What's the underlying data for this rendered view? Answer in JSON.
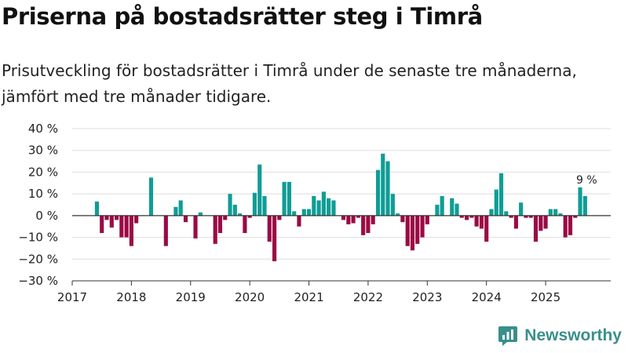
{
  "header": {
    "title": "Priserna på bostadsrätter steg i Timrå",
    "subtitle": "Prisutveckling för bostadsrätter i Timrå under de senaste tre månaderna, jämfört med tre månader tidigare."
  },
  "brand": {
    "name": "Newsworthy"
  },
  "colors": {
    "positive": "#0f9d96",
    "negative": "#9b0a45",
    "zero_line": "#333333",
    "grid": "#dddddd",
    "brand": "#3a8f8b"
  },
  "chart_data": {
    "type": "bar",
    "title": "Priserna på bostadsrätter steg i Timrå",
    "xlabel": "",
    "ylabel": "",
    "ylim": [
      -30,
      40
    ],
    "yticks": [
      -30,
      -20,
      -10,
      0,
      10,
      20,
      30,
      40
    ],
    "ytick_labels": [
      "−30 %",
      "−20 %",
      "−10 %",
      "0 %",
      "10 %",
      "20 %",
      "30 %",
      "40 %"
    ],
    "xlim": [
      2017,
      2026.1
    ],
    "xticks": [
      2017,
      2018,
      2019,
      2020,
      2021,
      2022,
      2023,
      2024,
      2025
    ],
    "xtick_labels": [
      "2017",
      "2018",
      "2019",
      "2020",
      "2021",
      "2022",
      "2023",
      "2024",
      "2025"
    ],
    "annotation": {
      "text": "9 %",
      "x": 2025.667,
      "y": 13
    },
    "series": [
      {
        "name": "Prisutveckling",
        "points": [
          {
            "x": 2017.417,
            "y": 6.5
          },
          {
            "x": 2017.5,
            "y": -8
          },
          {
            "x": 2017.583,
            "y": -2
          },
          {
            "x": 2017.667,
            "y": -5.5
          },
          {
            "x": 2017.75,
            "y": -2
          },
          {
            "x": 2017.833,
            "y": -10
          },
          {
            "x": 2017.917,
            "y": -10
          },
          {
            "x": 2018.0,
            "y": -14
          },
          {
            "x": 2018.083,
            "y": -3.5
          },
          {
            "x": 2018.333,
            "y": 17.5
          },
          {
            "x": 2018.583,
            "y": -14
          },
          {
            "x": 2018.75,
            "y": 4
          },
          {
            "x": 2018.833,
            "y": 7
          },
          {
            "x": 2018.917,
            "y": -3
          },
          {
            "x": 2019.083,
            "y": -10.5
          },
          {
            "x": 2019.167,
            "y": 1.5
          },
          {
            "x": 2019.417,
            "y": -13
          },
          {
            "x": 2019.5,
            "y": -8
          },
          {
            "x": 2019.583,
            "y": -2
          },
          {
            "x": 2019.667,
            "y": 10
          },
          {
            "x": 2019.75,
            "y": 5
          },
          {
            "x": 2019.833,
            "y": 1
          },
          {
            "x": 2019.917,
            "y": -8
          },
          {
            "x": 2020.0,
            "y": -1
          },
          {
            "x": 2020.083,
            "y": 10.5
          },
          {
            "x": 2020.167,
            "y": 23.5
          },
          {
            "x": 2020.25,
            "y": 9
          },
          {
            "x": 2020.333,
            "y": -12
          },
          {
            "x": 2020.417,
            "y": -21
          },
          {
            "x": 2020.5,
            "y": -2
          },
          {
            "x": 2020.583,
            "y": 15.5
          },
          {
            "x": 2020.667,
            "y": 15.5
          },
          {
            "x": 2020.75,
            "y": 2
          },
          {
            "x": 2020.833,
            "y": -5
          },
          {
            "x": 2020.917,
            "y": 3
          },
          {
            "x": 2021.0,
            "y": 3
          },
          {
            "x": 2021.083,
            "y": 9
          },
          {
            "x": 2021.167,
            "y": 7
          },
          {
            "x": 2021.25,
            "y": 11
          },
          {
            "x": 2021.333,
            "y": 8
          },
          {
            "x": 2021.417,
            "y": 7
          },
          {
            "x": 2021.583,
            "y": -2
          },
          {
            "x": 2021.667,
            "y": -4
          },
          {
            "x": 2021.75,
            "y": -3.5
          },
          {
            "x": 2021.833,
            "y": -1
          },
          {
            "x": 2021.917,
            "y": -9
          },
          {
            "x": 2022.0,
            "y": -8
          },
          {
            "x": 2022.083,
            "y": -4
          },
          {
            "x": 2022.167,
            "y": 21
          },
          {
            "x": 2022.25,
            "y": 28.5
          },
          {
            "x": 2022.333,
            "y": 25
          },
          {
            "x": 2022.417,
            "y": 10
          },
          {
            "x": 2022.5,
            "y": 1
          },
          {
            "x": 2022.583,
            "y": -3
          },
          {
            "x": 2022.667,
            "y": -14
          },
          {
            "x": 2022.75,
            "y": -16
          },
          {
            "x": 2022.833,
            "y": -13
          },
          {
            "x": 2022.917,
            "y": -10
          },
          {
            "x": 2023.0,
            "y": -4
          },
          {
            "x": 2023.167,
            "y": 5
          },
          {
            "x": 2023.25,
            "y": 9
          },
          {
            "x": 2023.417,
            "y": 8
          },
          {
            "x": 2023.5,
            "y": 5.5
          },
          {
            "x": 2023.583,
            "y": -1
          },
          {
            "x": 2023.667,
            "y": -2
          },
          {
            "x": 2023.75,
            "y": -1
          },
          {
            "x": 2023.833,
            "y": -5
          },
          {
            "x": 2023.917,
            "y": -6
          },
          {
            "x": 2024.0,
            "y": -12
          },
          {
            "x": 2024.083,
            "y": 3
          },
          {
            "x": 2024.167,
            "y": 12
          },
          {
            "x": 2024.25,
            "y": 19.5
          },
          {
            "x": 2024.333,
            "y": 2
          },
          {
            "x": 2024.417,
            "y": -1
          },
          {
            "x": 2024.5,
            "y": -6
          },
          {
            "x": 2024.583,
            "y": 6
          },
          {
            "x": 2024.667,
            "y": -1
          },
          {
            "x": 2024.75,
            "y": -1
          },
          {
            "x": 2024.833,
            "y": -12
          },
          {
            "x": 2024.917,
            "y": -7
          },
          {
            "x": 2025.0,
            "y": -6
          },
          {
            "x": 2025.083,
            "y": 3
          },
          {
            "x": 2025.167,
            "y": 3
          },
          {
            "x": 2025.25,
            "y": 1
          },
          {
            "x": 2025.333,
            "y": -10
          },
          {
            "x": 2025.417,
            "y": -9
          },
          {
            "x": 2025.5,
            "y": -1
          },
          {
            "x": 2025.583,
            "y": 13
          },
          {
            "x": 2025.667,
            "y": 9
          }
        ]
      }
    ]
  }
}
